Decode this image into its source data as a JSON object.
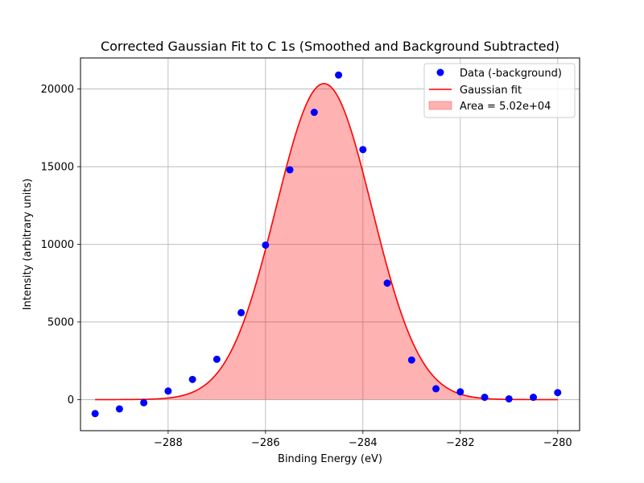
{
  "chart_data": {
    "type": "scatter",
    "title": "Corrected Gaussian Fit to C 1s (Smoothed and Background Subtracted)",
    "xlabel": "Binding Energy (eV)",
    "ylabel": "Intensity (arbitrary units)",
    "xlim": [
      -289.8,
      -279.55
    ],
    "ylim": [
      -2000,
      22000
    ],
    "xticks": [
      -288,
      -286,
      -284,
      -282,
      -280
    ],
    "yticks": [
      0,
      5000,
      10000,
      15000,
      20000
    ],
    "grid": true,
    "legend_position": "top-right",
    "data_series": {
      "name": "Data (-background)",
      "color": "#0000ff",
      "x": [
        -289.5,
        -289.0,
        -288.5,
        -288.0,
        -287.5,
        -287.0,
        -286.5,
        -286.0,
        -285.5,
        -285.0,
        -284.5,
        -284.0,
        -283.5,
        -283.0,
        -282.5,
        -282.0,
        -281.5,
        -281.0,
        -280.5,
        -280.0
      ],
      "y": [
        -900,
        -600,
        -200,
        550,
        1300,
        2600,
        5600,
        9950,
        14800,
        18500,
        20900,
        16100,
        7500,
        2550,
        700,
        500,
        150,
        50,
        150,
        450
      ]
    },
    "fit_series": {
      "name": "Gaussian fit",
      "color": "#ff0000",
      "amplitude": 20350,
      "center": -284.8,
      "sigma": 0.985,
      "x_range": [
        -289.5,
        -280.0
      ]
    },
    "area_series": {
      "name": "Area = 5.02e+04",
      "color": "#ff8080"
    }
  }
}
